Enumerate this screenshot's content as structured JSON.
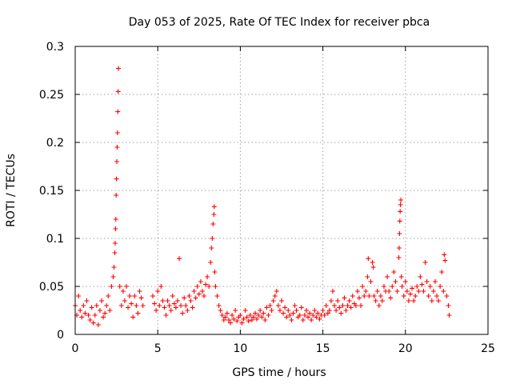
{
  "chart_data": {
    "type": "scatter",
    "title": "Day 053 of 2025, Rate Of TEC Index for receiver pbca",
    "xlabel": "GPS time / hours",
    "ylabel": "ROTI / TECUs",
    "xlim": [
      0,
      25
    ],
    "ylim": [
      0,
      0.3
    ],
    "x_ticks": [
      0,
      5,
      10,
      15,
      20,
      25
    ],
    "y_ticks": [
      0,
      0.05,
      0.1,
      0.15,
      0.2,
      0.25,
      0.3
    ],
    "x_tick_labels": [
      "0",
      "5",
      "10",
      "15",
      "20",
      "25"
    ],
    "y_tick_labels": [
      "0",
      "0.05",
      "0.1",
      "0.15",
      "0.2",
      "0.25",
      "0.3"
    ],
    "grid": true,
    "marker": "plus",
    "color": "#ff0000",
    "series": [
      {
        "points": [
          [
            0.0,
            0.03
          ],
          [
            0.1,
            0.02
          ],
          [
            0.2,
            0.04
          ],
          [
            0.3,
            0.025
          ],
          [
            0.4,
            0.018
          ],
          [
            0.5,
            0.03
          ],
          [
            0.6,
            0.022
          ],
          [
            0.7,
            0.035
          ],
          [
            0.8,
            0.02
          ],
          [
            0.9,
            0.015
          ],
          [
            1.0,
            0.028
          ],
          [
            1.1,
            0.012
          ],
          [
            1.2,
            0.02
          ],
          [
            1.3,
            0.03
          ],
          [
            1.4,
            0.01
          ],
          [
            1.5,
            0.025
          ],
          [
            1.6,
            0.035
          ],
          [
            1.7,
            0.018
          ],
          [
            1.8,
            0.022
          ],
          [
            1.9,
            0.03
          ],
          [
            2.0,
            0.04
          ],
          [
            2.1,
            0.025
          ],
          [
            2.2,
            0.05
          ],
          [
            2.3,
            0.06
          ],
          [
            2.35,
            0.07
          ],
          [
            2.4,
            0.085
          ],
          [
            2.42,
            0.095
          ],
          [
            2.44,
            0.11
          ],
          [
            2.46,
            0.12
          ],
          [
            2.48,
            0.145
          ],
          [
            2.5,
            0.162
          ],
          [
            2.52,
            0.18
          ],
          [
            2.54,
            0.195
          ],
          [
            2.56,
            0.21
          ],
          [
            2.58,
            0.232
          ],
          [
            2.6,
            0.253
          ],
          [
            2.62,
            0.277
          ],
          [
            2.7,
            0.05
          ],
          [
            2.8,
            0.03
          ],
          [
            2.9,
            0.045
          ],
          [
            3.0,
            0.035
          ],
          [
            3.1,
            0.05
          ],
          [
            3.2,
            0.028
          ],
          [
            3.3,
            0.04
          ],
          [
            3.4,
            0.032
          ],
          [
            3.5,
            0.018
          ],
          [
            3.6,
            0.04
          ],
          [
            3.7,
            0.03
          ],
          [
            3.8,
            0.022
          ],
          [
            3.9,
            0.045
          ],
          [
            4.0,
            0.038
          ],
          [
            4.1,
            0.03
          ],
          [
            4.7,
            0.04
          ],
          [
            4.8,
            0.032
          ],
          [
            4.9,
            0.025
          ],
          [
            5.0,
            0.045
          ],
          [
            5.1,
            0.03
          ],
          [
            5.2,
            0.05
          ],
          [
            5.3,
            0.035
          ],
          [
            5.4,
            0.028
          ],
          [
            5.5,
            0.02
          ],
          [
            5.6,
            0.035
          ],
          [
            5.7,
            0.03
          ],
          [
            5.8,
            0.025
          ],
          [
            5.9,
            0.04
          ],
          [
            6.0,
            0.032
          ],
          [
            6.1,
            0.028
          ],
          [
            6.2,
            0.035
          ],
          [
            6.3,
            0.079
          ],
          [
            6.4,
            0.03
          ],
          [
            6.5,
            0.022
          ],
          [
            6.6,
            0.038
          ],
          [
            6.7,
            0.03
          ],
          [
            6.8,
            0.025
          ],
          [
            6.9,
            0.04
          ],
          [
            7.0,
            0.035
          ],
          [
            7.1,
            0.028
          ],
          [
            7.2,
            0.045
          ],
          [
            7.3,
            0.038
          ],
          [
            7.4,
            0.05
          ],
          [
            7.5,
            0.042
          ],
          [
            7.6,
            0.055
          ],
          [
            7.7,
            0.045
          ],
          [
            7.8,
            0.04
          ],
          [
            7.9,
            0.052
          ],
          [
            8.0,
            0.06
          ],
          [
            8.1,
            0.05
          ],
          [
            8.2,
            0.075
          ],
          [
            8.25,
            0.09
          ],
          [
            8.3,
            0.1
          ],
          [
            8.35,
            0.115
          ],
          [
            8.4,
            0.125
          ],
          [
            8.42,
            0.133
          ],
          [
            8.45,
            0.065
          ],
          [
            8.5,
            0.05
          ],
          [
            8.6,
            0.04
          ],
          [
            8.7,
            0.03
          ],
          [
            8.8,
            0.025
          ],
          [
            8.9,
            0.02
          ],
          [
            9.0,
            0.015
          ],
          [
            9.1,
            0.018
          ],
          [
            9.2,
            0.022
          ],
          [
            9.3,
            0.015
          ],
          [
            9.4,
            0.012
          ],
          [
            9.5,
            0.02
          ],
          [
            9.6,
            0.016
          ],
          [
            9.7,
            0.025
          ],
          [
            9.8,
            0.014
          ],
          [
            9.9,
            0.018
          ],
          [
            10.0,
            0.02
          ],
          [
            10.1,
            0.012
          ],
          [
            10.2,
            0.016
          ],
          [
            10.3,
            0.025
          ],
          [
            10.4,
            0.018
          ],
          [
            10.5,
            0.014
          ],
          [
            10.6,
            0.02
          ],
          [
            10.7,
            0.015
          ],
          [
            10.8,
            0.018
          ],
          [
            10.9,
            0.022
          ],
          [
            11.0,
            0.016
          ],
          [
            11.1,
            0.02
          ],
          [
            11.2,
            0.025
          ],
          [
            11.3,
            0.018
          ],
          [
            11.4,
            0.022
          ],
          [
            11.5,
            0.015
          ],
          [
            11.6,
            0.028
          ],
          [
            11.7,
            0.02
          ],
          [
            11.8,
            0.03
          ],
          [
            11.9,
            0.025
          ],
          [
            12.0,
            0.035
          ],
          [
            12.1,
            0.04
          ],
          [
            12.2,
            0.045
          ],
          [
            12.3,
            0.03
          ],
          [
            12.4,
            0.025
          ],
          [
            12.5,
            0.035
          ],
          [
            12.6,
            0.022
          ],
          [
            12.7,
            0.028
          ],
          [
            12.8,
            0.018
          ],
          [
            12.9,
            0.025
          ],
          [
            13.0,
            0.02
          ],
          [
            13.1,
            0.015
          ],
          [
            13.2,
            0.022
          ],
          [
            13.3,
            0.03
          ],
          [
            13.4,
            0.025
          ],
          [
            13.5,
            0.018
          ],
          [
            13.6,
            0.02
          ],
          [
            13.7,
            0.028
          ],
          [
            13.8,
            0.015
          ],
          [
            13.9,
            0.02
          ],
          [
            14.0,
            0.025
          ],
          [
            14.1,
            0.018
          ],
          [
            14.2,
            0.022
          ],
          [
            14.3,
            0.015
          ],
          [
            14.4,
            0.02
          ],
          [
            14.5,
            0.025
          ],
          [
            14.6,
            0.018
          ],
          [
            14.7,
            0.022
          ],
          [
            14.8,
            0.016
          ],
          [
            14.9,
            0.02
          ],
          [
            15.0,
            0.025
          ],
          [
            15.1,
            0.02
          ],
          [
            15.2,
            0.03
          ],
          [
            15.3,
            0.022
          ],
          [
            15.4,
            0.025
          ],
          [
            15.5,
            0.035
          ],
          [
            15.6,
            0.045
          ],
          [
            15.7,
            0.03
          ],
          [
            15.8,
            0.025
          ],
          [
            15.9,
            0.035
          ],
          [
            16.0,
            0.028
          ],
          [
            16.1,
            0.022
          ],
          [
            16.2,
            0.03
          ],
          [
            16.3,
            0.038
          ],
          [
            16.4,
            0.025
          ],
          [
            16.5,
            0.03
          ],
          [
            16.6,
            0.035
          ],
          [
            16.7,
            0.028
          ],
          [
            16.8,
            0.04
          ],
          [
            16.9,
            0.032
          ],
          [
            17.0,
            0.03
          ],
          [
            17.1,
            0.045
          ],
          [
            17.2,
            0.038
          ],
          [
            17.3,
            0.03
          ],
          [
            17.4,
            0.05
          ],
          [
            17.5,
            0.04
          ],
          [
            17.6,
            0.045
          ],
          [
            17.7,
            0.06
          ],
          [
            17.75,
            0.079
          ],
          [
            17.8,
            0.04
          ],
          [
            17.9,
            0.055
          ],
          [
            18.0,
            0.075
          ],
          [
            18.05,
            0.07
          ],
          [
            18.1,
            0.04
          ],
          [
            18.2,
            0.035
          ],
          [
            18.3,
            0.045
          ],
          [
            18.4,
            0.03
          ],
          [
            18.5,
            0.04
          ],
          [
            18.6,
            0.035
          ],
          [
            18.7,
            0.05
          ],
          [
            18.8,
            0.045
          ],
          [
            18.9,
            0.06
          ],
          [
            19.0,
            0.045
          ],
          [
            19.1,
            0.038
          ],
          [
            19.2,
            0.05
          ],
          [
            19.3,
            0.065
          ],
          [
            19.4,
            0.055
          ],
          [
            19.5,
            0.045
          ],
          [
            19.6,
            0.08
          ],
          [
            19.62,
            0.09
          ],
          [
            19.64,
            0.105
          ],
          [
            19.66,
            0.118
          ],
          [
            19.68,
            0.128
          ],
          [
            19.7,
            0.135
          ],
          [
            19.72,
            0.14
          ],
          [
            19.75,
            0.06
          ],
          [
            19.8,
            0.05
          ],
          [
            19.9,
            0.04
          ],
          [
            20.0,
            0.055
          ],
          [
            20.1,
            0.045
          ],
          [
            20.2,
            0.035
          ],
          [
            20.3,
            0.042
          ],
          [
            20.4,
            0.048
          ],
          [
            20.5,
            0.035
          ],
          [
            20.6,
            0.04
          ],
          [
            20.7,
            0.05
          ],
          [
            20.8,
            0.045
          ],
          [
            20.9,
            0.06
          ],
          [
            21.0,
            0.052
          ],
          [
            21.1,
            0.045
          ],
          [
            21.2,
            0.075
          ],
          [
            21.3,
            0.055
          ],
          [
            21.4,
            0.04
          ],
          [
            21.5,
            0.05
          ],
          [
            21.6,
            0.035
          ],
          [
            21.7,
            0.045
          ],
          [
            21.8,
            0.055
          ],
          [
            21.9,
            0.04
          ],
          [
            22.0,
            0.035
          ],
          [
            22.1,
            0.05
          ],
          [
            22.2,
            0.065
          ],
          [
            22.3,
            0.045
          ],
          [
            22.35,
            0.083
          ],
          [
            22.4,
            0.077
          ],
          [
            22.5,
            0.04
          ],
          [
            22.6,
            0.03
          ],
          [
            22.65,
            0.02
          ]
        ]
      }
    ]
  }
}
